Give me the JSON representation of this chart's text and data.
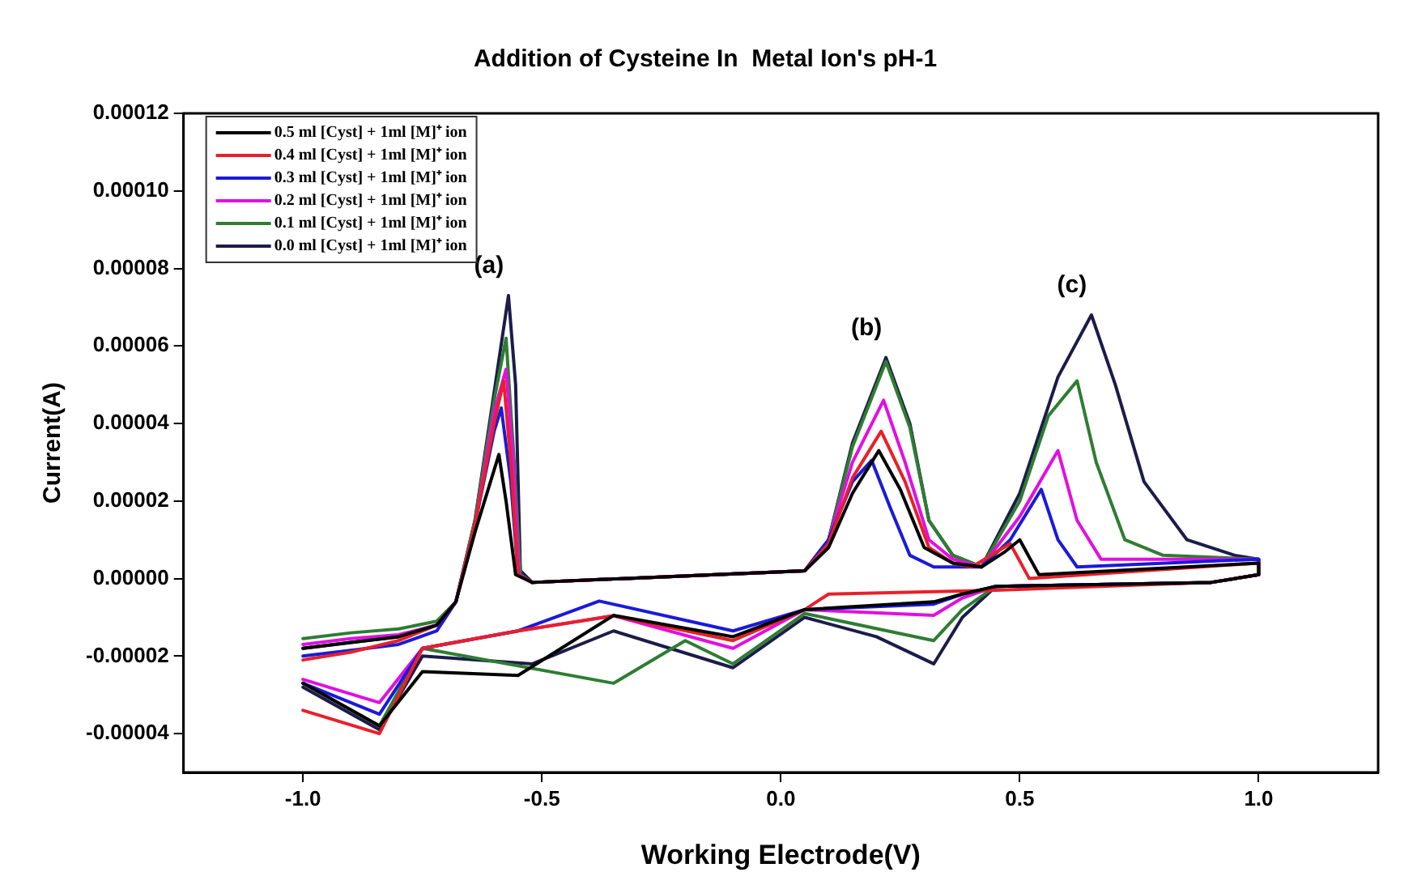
{
  "chart_data": {
    "type": "line",
    "title": "Addition of Cysteine In  Metal Ion's pH-1",
    "xlabel": "Working Electrode(V)",
    "ylabel": "Current(A)",
    "xlim": [
      -1.25,
      1.25
    ],
    "xticks": [
      {
        "value": -1,
        "label": "-1.0"
      },
      {
        "value": -0.5,
        "label": "-0.5"
      },
      {
        "value": 0,
        "label": "0.0"
      },
      {
        "value": 0.5,
        "label": "0.5"
      },
      {
        "value": 1,
        "label": "1.0"
      }
    ],
    "ylim": [
      -5e-05,
      0.00012
    ],
    "yticks": [
      {
        "value": -4e-05,
        "label": "-0.00004"
      },
      {
        "value": -2e-05,
        "label": "-0.00002"
      },
      {
        "value": 0,
        "label": "0.00000"
      },
      {
        "value": 2e-05,
        "label": "0.00002"
      },
      {
        "value": 4e-05,
        "label": "0.00004"
      },
      {
        "value": 6e-05,
        "label": "0.00006"
      },
      {
        "value": 8e-05,
        "label": "0.00008"
      },
      {
        "value": 0.0001,
        "label": "0.00010"
      },
      {
        "value": 0.00012,
        "label": "0.00012"
      }
    ],
    "legend": "top left",
    "marker": "none",
    "line_style": "solid",
    "annotations": [
      {
        "text": "(a)",
        "x": -0.57,
        "y": 7.3e-05
      },
      {
        "text": "(b)",
        "x": 0.22,
        "y": 5.7e-05
      },
      {
        "text": "(c)",
        "x": 0.65,
        "y": 6.8e-05
      }
    ],
    "series": [
      {
        "name": "0.5 ml [Cyst] + 1ml [M]⁺ ion",
        "color": "#000000",
        "x": [
          -1,
          -0.9,
          -0.8,
          -0.72,
          -0.68,
          -0.64,
          -0.59,
          -0.575,
          -0.555,
          -0.52,
          0.05,
          0.1,
          0.15,
          0.205,
          0.25,
          0.3,
          0.36,
          0.42,
          0.47,
          0.5,
          0.54,
          1,
          1,
          0.9,
          0.45,
          0.38,
          0.32,
          0.05,
          -0.1,
          -0.35,
          -0.55,
          -0.75,
          -0.84,
          -1
        ],
        "values": [
          -1.8e-05,
          -1.65e-05,
          -1.5e-05,
          -1.2e-05,
          -6e-06,
          1.2e-05,
          3.2e-05,
          2e-05,
          1e-06,
          -1e-06,
          2e-06,
          8e-06,
          2.2e-05,
          3.3e-05,
          2.3e-05,
          8e-06,
          4e-06,
          3e-06,
          7e-06,
          1e-05,
          1e-06,
          4e-06,
          1e-06,
          -1e-06,
          -2e-06,
          -4e-06,
          -6e-06,
          -8e-06,
          -1.5e-05,
          -9.5e-06,
          -2.5e-05,
          -2.4e-05,
          -3.8e-05,
          -2.7e-05
        ]
      },
      {
        "name": "0.4 ml [Cyst] + 1ml [M]⁺ ion",
        "color": "#e8202a",
        "x": [
          -1,
          -0.9,
          -0.8,
          -0.72,
          -0.68,
          -0.64,
          -0.6,
          -0.58,
          -0.565,
          -0.55,
          -0.52,
          0.05,
          0.1,
          0.15,
          0.21,
          0.26,
          0.31,
          0.36,
          0.4,
          0.48,
          0.52,
          1,
          1,
          0.9,
          0.45,
          0.1,
          0.05,
          -0.1,
          -0.35,
          -0.55,
          -0.75,
          -0.84,
          -1
        ],
        "values": [
          -2.1e-05,
          -1.9e-05,
          -1.6e-05,
          -1.2e-05,
          -6e-06,
          1.4e-05,
          4e-05,
          5.1e-05,
          3e-05,
          1e-06,
          -1e-06,
          2e-06,
          9e-06,
          2.6e-05,
          3.8e-05,
          2.5e-05,
          8e-06,
          4e-06,
          3e-06,
          9e-06,
          0,
          4e-06,
          1e-06,
          -1e-06,
          -3e-06,
          -4e-06,
          -8e-06,
          -1.6e-05,
          -9.6e-06,
          -1.35e-05,
          -1.8e-05,
          -4e-05,
          -3.4e-05
        ]
      },
      {
        "name": "0.3 ml [Cyst] + 1ml [M]⁺ ion",
        "color": "#1a1adb",
        "x": [
          -1,
          -0.9,
          -0.8,
          -0.72,
          -0.68,
          -0.64,
          -0.6,
          -0.585,
          -0.565,
          -0.55,
          -0.52,
          0.05,
          0.1,
          0.15,
          0.19,
          0.23,
          0.27,
          0.32,
          0.42,
          0.48,
          0.545,
          0.58,
          0.62,
          1,
          1,
          0.9,
          0.45,
          0.38,
          0.32,
          0.05,
          -0.1,
          -0.38,
          -0.55,
          -0.75,
          -0.84,
          -1
        ],
        "values": [
          -2e-05,
          -1.85e-05,
          -1.7e-05,
          -1.35e-05,
          -6e-06,
          1.4e-05,
          3.8e-05,
          4.4e-05,
          2.5e-05,
          1e-06,
          -1e-06,
          2e-06,
          1e-05,
          2.5e-05,
          3.05e-05,
          1.8e-05,
          6e-06,
          3e-06,
          3e-06,
          1e-05,
          2.3e-05,
          1e-05,
          3e-06,
          5e-06,
          1e-06,
          -1e-06,
          -2e-06,
          -4e-06,
          -6.6e-06,
          -8e-06,
          -1.35e-05,
          -5.8e-06,
          -1.35e-05,
          -1.8e-05,
          -3.5e-05,
          -2.7e-05
        ]
      },
      {
        "name": "0.2 ml [Cyst] + 1ml [M]⁺ ion",
        "color": "#e010e0",
        "x": [
          -1,
          -0.9,
          -0.8,
          -0.72,
          -0.68,
          -0.64,
          -0.6,
          -0.575,
          -0.56,
          -0.548,
          -0.52,
          0.05,
          0.1,
          0.15,
          0.215,
          0.26,
          0.31,
          0.36,
          0.42,
          0.5,
          0.58,
          0.62,
          0.67,
          1,
          1,
          0.9,
          0.45,
          0.38,
          0.32,
          0.05,
          -0.1,
          -0.35,
          -0.55,
          -0.75,
          -0.84,
          -1
        ],
        "values": [
          -1.7e-05,
          -1.55e-05,
          -1.45e-05,
          -1.2e-05,
          -6e-06,
          1.4e-05,
          4.3e-05,
          5.4e-05,
          3e-05,
          1e-06,
          -1e-06,
          2e-06,
          1e-05,
          3e-05,
          4.6e-05,
          3e-05,
          1e-05,
          5e-06,
          3e-06,
          1.6e-05,
          3.3e-05,
          1.5e-05,
          5e-06,
          5e-06,
          1e-06,
          -1e-06,
          -2e-06,
          -5e-06,
          -9.5e-06,
          -8e-06,
          -1.8e-05,
          -9.6e-06,
          -1.35e-05,
          -1.8e-05,
          -3.2e-05,
          -2.6e-05
        ]
      },
      {
        "name": "0.1 ml [Cyst] + 1ml [M]⁺ ion",
        "color": "#2e7d32",
        "x": [
          -1,
          -0.9,
          -0.8,
          -0.72,
          -0.68,
          -0.64,
          -0.6,
          -0.575,
          -0.558,
          -0.545,
          -0.52,
          0.05,
          0.1,
          0.15,
          0.22,
          0.27,
          0.31,
          0.36,
          0.42,
          0.5,
          0.56,
          0.62,
          0.66,
          0.72,
          0.8,
          1,
          1,
          0.9,
          0.45,
          0.38,
          0.32,
          0.05,
          -0.1,
          -0.2,
          -0.35,
          -0.75,
          -0.84,
          -1
        ],
        "values": [
          -1.55e-05,
          -1.4e-05,
          -1.3e-05,
          -1.1e-05,
          -6e-06,
          1.5e-05,
          4.6e-05,
          6.2e-05,
          3e-05,
          1e-06,
          -1e-06,
          2e-06,
          1e-05,
          3.4e-05,
          5.6e-05,
          3.9e-05,
          1.5e-05,
          6e-06,
          3e-06,
          2e-05,
          4.2e-05,
          5.1e-05,
          3e-05,
          1e-05,
          6e-06,
          5e-06,
          1e-06,
          -1e-06,
          -2e-06,
          -8e-06,
          -1.6e-05,
          -9e-06,
          -2.2e-05,
          -1.6e-05,
          -2.7e-05,
          -1.8e-05,
          -3.8e-05,
          -2.7e-05
        ]
      },
      {
        "name": "0.0 ml [Cyst] + 1ml [M]⁺ ion",
        "color": "#1c1c4a",
        "x": [
          -1,
          -0.9,
          -0.8,
          -0.72,
          -0.68,
          -0.64,
          -0.6,
          -0.57,
          -0.555,
          -0.545,
          -0.52,
          0.05,
          0.1,
          0.15,
          0.22,
          0.27,
          0.31,
          0.36,
          0.42,
          0.5,
          0.58,
          0.65,
          0.7,
          0.76,
          0.85,
          0.95,
          1,
          1,
          0.9,
          0.45,
          0.38,
          0.32,
          0.2,
          0.05,
          -0.1,
          -0.35,
          -0.52,
          -0.75,
          -0.84,
          -1
        ],
        "values": [
          -1.8e-05,
          -1.65e-05,
          -1.5e-05,
          -1.2e-05,
          -6e-06,
          1.5e-05,
          4.8e-05,
          7.3e-05,
          5e-05,
          2e-06,
          -1e-06,
          2e-06,
          1e-05,
          3.5e-05,
          5.7e-05,
          4e-05,
          1.5e-05,
          6e-06,
          3e-06,
          2.2e-05,
          5.2e-05,
          6.8e-05,
          5e-05,
          2.5e-05,
          1e-05,
          6e-06,
          5e-06,
          1e-06,
          -1e-06,
          -2e-06,
          -1e-05,
          -2.2e-05,
          -1.5e-05,
          -1e-05,
          -2.3e-05,
          -1.35e-05,
          -2.2e-05,
          -2e-05,
          -3.9e-05,
          -2.8e-05
        ]
      }
    ]
  }
}
